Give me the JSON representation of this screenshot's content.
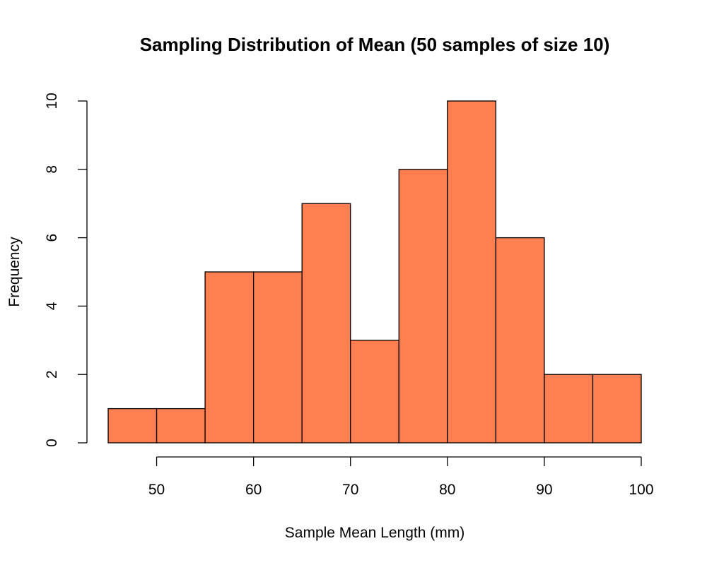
{
  "chart_data": {
    "type": "bar",
    "title": "Sampling Distribution of Mean (50 samples of size 10)",
    "xlabel": "Sample Mean Length (mm)",
    "ylabel": "Frequency",
    "bins": [
      {
        "from": 45,
        "to": 50,
        "count": 1
      },
      {
        "from": 50,
        "to": 55,
        "count": 1
      },
      {
        "from": 55,
        "to": 60,
        "count": 5
      },
      {
        "from": 60,
        "to": 65,
        "count": 5
      },
      {
        "from": 65,
        "to": 70,
        "count": 7
      },
      {
        "from": 70,
        "to": 75,
        "count": 3
      },
      {
        "from": 75,
        "to": 80,
        "count": 8
      },
      {
        "from": 80,
        "to": 85,
        "count": 10
      },
      {
        "from": 85,
        "to": 90,
        "count": 6
      },
      {
        "from": 90,
        "to": 95,
        "count": 2
      },
      {
        "from": 95,
        "to": 100,
        "count": 2
      }
    ],
    "x_ticks": [
      50,
      60,
      70,
      80,
      90,
      100
    ],
    "y_ticks": [
      0,
      2,
      4,
      6,
      8,
      10
    ],
    "xlim": [
      45,
      100
    ],
    "ylim": [
      0,
      10
    ],
    "bar_color": "#ff7f50",
    "grid": false
  }
}
